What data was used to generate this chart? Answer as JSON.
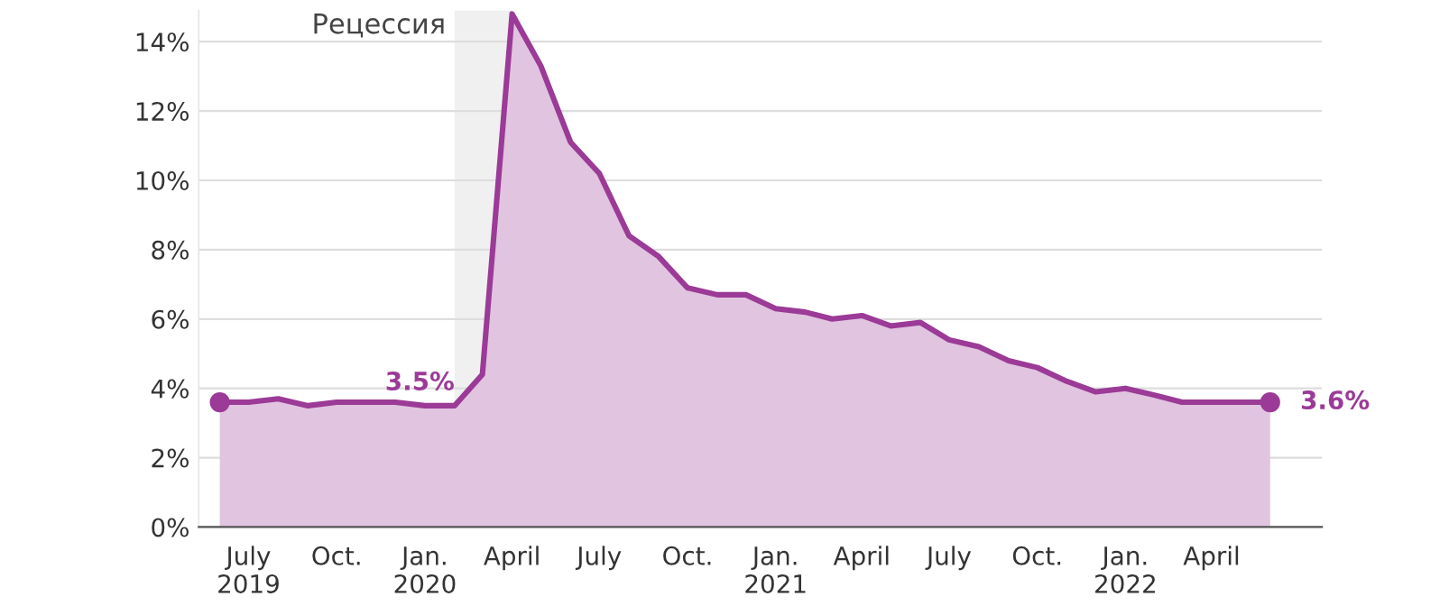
{
  "chart_data": {
    "type": "area",
    "x": [
      "2019-06",
      "2019-07",
      "2019-08",
      "2019-09",
      "2019-10",
      "2019-11",
      "2019-12",
      "2020-01",
      "2020-02",
      "2020-03",
      "2020-04",
      "2020-05",
      "2020-06",
      "2020-07",
      "2020-08",
      "2020-09",
      "2020-10",
      "2020-11",
      "2020-12",
      "2021-01",
      "2021-02",
      "2021-03",
      "2021-04",
      "2021-05",
      "2021-06",
      "2021-07",
      "2021-08",
      "2021-09",
      "2021-10",
      "2021-11",
      "2021-12",
      "2022-01",
      "2022-02",
      "2022-03",
      "2022-04",
      "2022-05",
      "2022-06"
    ],
    "series": [
      {
        "color": "#9b3a97",
        "values": [
          3.6,
          3.6,
          3.7,
          3.5,
          3.6,
          3.6,
          3.6,
          3.5,
          3.5,
          4.4,
          14.8,
          13.3,
          11.1,
          10.2,
          8.4,
          7.8,
          6.9,
          6.7,
          6.7,
          6.3,
          6.2,
          6.0,
          6.1,
          5.8,
          5.9,
          5.4,
          5.2,
          4.8,
          4.6,
          4.2,
          3.9,
          4.0,
          3.8,
          3.6,
          3.6,
          3.6,
          3.6
        ],
        "value_labels": [
          null,
          null,
          null,
          null,
          null,
          null,
          null,
          null,
          "3.5%",
          null,
          null,
          null,
          null,
          null,
          null,
          null,
          null,
          null,
          null,
          null,
          null,
          null,
          null,
          null,
          null,
          null,
          null,
          null,
          null,
          null,
          null,
          null,
          null,
          null,
          null,
          null,
          null
        ]
      },
      {
        "type": "scatter",
        "color": "#9b3a97",
        "marker": "circle",
        "x": [
          "2019-06",
          "2022-06"
        ],
        "values": [
          3.6,
          3.6
        ],
        "value_labels": [
          null,
          "3.6%"
        ]
      }
    ],
    "bands": [
      {
        "axis": "x",
        "from": "2020-02",
        "to": "2020-04",
        "label": "Рецессия",
        "color": "#f0f0f0"
      }
    ],
    "xlim": [
      "2019-05-10",
      "2022-07-25"
    ],
    "xticks": [
      {
        "value": "2019-07",
        "label": "July\n2019"
      },
      {
        "value": "2019-10",
        "label": "Oct."
      },
      {
        "value": "2020-01",
        "label": "Jan.\n2020"
      },
      {
        "value": "2020-04",
        "label": "April"
      },
      {
        "value": "2020-07",
        "label": "July"
      },
      {
        "value": "2020-10",
        "label": "Oct."
      },
      {
        "value": "2021-01",
        "label": "Jan.\n2021"
      },
      {
        "value": "2021-04",
        "label": "April"
      },
      {
        "value": "2021-07",
        "label": "July"
      },
      {
        "value": "2021-10",
        "label": "Oct."
      },
      {
        "value": "2022-01",
        "label": "Jan.\n2022"
      },
      {
        "value": "2022-04",
        "label": "April"
      }
    ],
    "ylim": [
      0,
      14.9
    ],
    "yticks": [
      {
        "value": 0,
        "label": "0%"
      },
      {
        "value": 2,
        "label": "2%"
      },
      {
        "value": 4,
        "label": "4%"
      },
      {
        "value": 6,
        "label": "6%"
      },
      {
        "value": 8,
        "label": "8%"
      },
      {
        "value": 10,
        "label": "10%"
      },
      {
        "value": 12,
        "label": "12%"
      },
      {
        "value": 14,
        "label": "14%"
      }
    ],
    "grid": "y",
    "legend": false
  }
}
